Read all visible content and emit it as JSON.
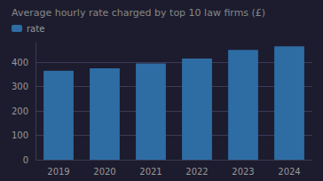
{
  "chart_data": {
    "type": "bar",
    "title": "Average hourly rate charged by top 10 law firms (£)",
    "categories": [
      "2019",
      "2020",
      "2021",
      "2022",
      "2023",
      "2024"
    ],
    "series": [
      {
        "name": "rate",
        "color": "#2e6da4",
        "values": [
          365,
          375,
          395,
          415,
          450,
          465
        ]
      }
    ],
    "ylim": [
      0,
      480
    ],
    "yticks": [
      0,
      100,
      200,
      300,
      400
    ],
    "grid": true,
    "legend": "upper left"
  }
}
